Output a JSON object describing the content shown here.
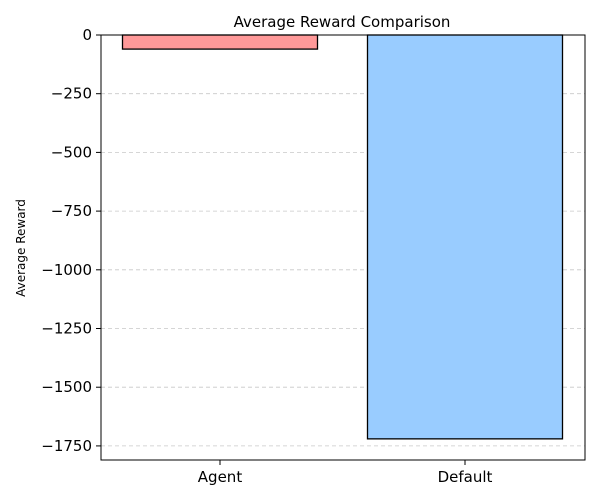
{
  "chart_data": {
    "type": "bar",
    "title": "Average Reward Comparison",
    "xlabel": "",
    "ylabel": "Average Reward",
    "categories": [
      "Agent",
      "Default"
    ],
    "values": [
      -60,
      -1720
    ],
    "colors": [
      "#ff9999",
      "#99ccff"
    ],
    "edge_color": "#000000",
    "ylim": [
      -1810,
      0
    ],
    "yticks": [
      0,
      -250,
      -500,
      -750,
      -1000,
      -1250,
      -1500,
      -1750
    ],
    "ytick_labels": [
      "0",
      "−250",
      "−500",
      "−750",
      "−1000",
      "−1250",
      "−1500",
      "−1750"
    ],
    "grid": {
      "axis": "y",
      "style": "dashed",
      "color": "#c8c8c8"
    },
    "legend": "none"
  }
}
